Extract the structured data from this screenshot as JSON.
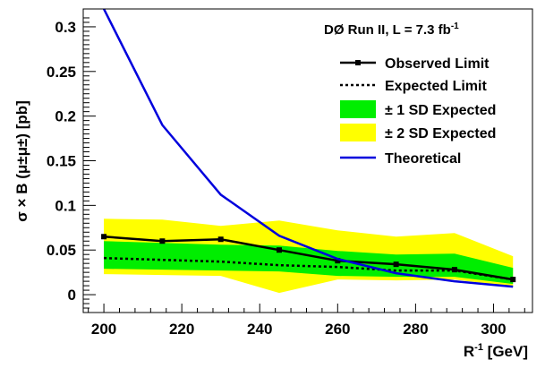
{
  "chart_data": {
    "type": "line",
    "title": "DØ Run II, L = 7.3 fb",
    "title_sup": "-1",
    "xlabel": "R",
    "xlabel_sup": "-1",
    "xlabel_unit": " [GeV]",
    "ylabel": "σ × B (μ±μ±) [pb]",
    "xlim": [
      194.7,
      310
    ],
    "ylim": [
      -0.02,
      0.32
    ],
    "xticks": [
      200,
      220,
      240,
      260,
      280,
      300
    ],
    "yticks": [
      0,
      0.05,
      0.1,
      0.15,
      0.2,
      0.25,
      0.3
    ],
    "ytick_labels": [
      "0",
      "0.05",
      "0.1",
      "0.15",
      "0.2",
      "0.25",
      "0.3"
    ],
    "x": [
      200,
      215,
      230,
      245,
      260,
      275,
      290,
      305
    ],
    "series": [
      {
        "name": "Observed Limit",
        "values": [
          0.065,
          0.06,
          0.062,
          0.05,
          0.038,
          0.034,
          0.028,
          0.017
        ],
        "color": "#000000"
      },
      {
        "name": "Expected Limit",
        "values": [
          0.041,
          0.039,
          0.037,
          0.033,
          0.031,
          0.027,
          0.027,
          0.017
        ],
        "color": "#000000"
      },
      {
        "name": "± 1 SD Expected",
        "upper": [
          0.06,
          0.058,
          0.056,
          0.055,
          0.049,
          0.045,
          0.046,
          0.03
        ],
        "lower": [
          0.029,
          0.028,
          0.027,
          0.026,
          0.021,
          0.02,
          0.02,
          0.012
        ],
        "color": "#00ee00"
      },
      {
        "name": "± 2 SD Expected",
        "upper": [
          0.085,
          0.084,
          0.077,
          0.083,
          0.072,
          0.065,
          0.069,
          0.043
        ],
        "lower": [
          0.023,
          0.022,
          0.021,
          0.002,
          0.017,
          0.016,
          0.017,
          0.009
        ],
        "color": "#ffff00"
      },
      {
        "name": "Theoretical",
        "values": [
          0.32,
          0.19,
          0.112,
          0.066,
          0.04,
          0.024,
          0.015,
          0.009
        ],
        "color": "#0000dd"
      }
    ],
    "legend": "top-right",
    "grid": false
  }
}
